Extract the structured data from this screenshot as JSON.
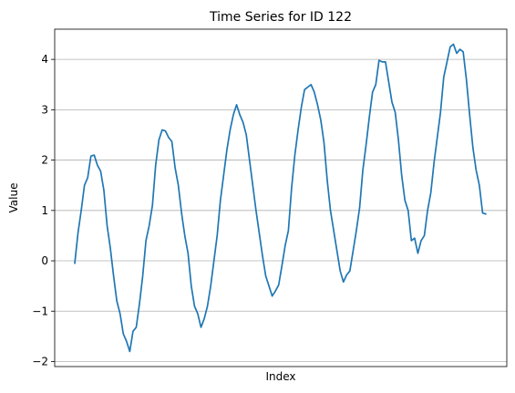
{
  "chart_data": {
    "type": "line",
    "title": "Time Series for ID 122",
    "xlabel": "Index",
    "ylabel": "Value",
    "ylim": [
      -2.1,
      4.6
    ],
    "yticks": [
      -2,
      -1,
      0,
      1,
      2,
      3,
      4
    ],
    "ytick_labels": [
      "−2",
      "−1",
      "0",
      "1",
      "2",
      "3",
      "4"
    ],
    "grid": "y",
    "line_color": "#1f77b4",
    "series": [
      {
        "values": [
          -0.05,
          0.55,
          1.0,
          1.5,
          1.65,
          2.08,
          2.1,
          1.9,
          1.78,
          1.4,
          0.7,
          0.25,
          -0.3,
          -0.8,
          -1.05,
          -1.45,
          -1.6,
          -1.8,
          -1.4,
          -1.32,
          -0.85,
          -0.3,
          0.4,
          0.7,
          1.1,
          1.9,
          2.4,
          2.6,
          2.58,
          2.45,
          2.37,
          1.85,
          1.5,
          0.95,
          0.5,
          0.15,
          -0.5,
          -0.9,
          -1.05,
          -1.32,
          -1.15,
          -0.9,
          -0.5,
          0.0,
          0.5,
          1.2,
          1.7,
          2.2,
          2.6,
          2.9,
          3.1,
          2.9,
          2.75,
          2.5,
          2.0,
          1.5,
          1.0,
          0.55,
          0.1,
          -0.3,
          -0.5,
          -0.7,
          -0.6,
          -0.48,
          -0.1,
          0.3,
          0.6,
          1.45,
          2.1,
          2.6,
          3.05,
          3.4,
          3.45,
          3.5,
          3.35,
          3.1,
          2.8,
          2.35,
          1.6,
          1.0,
          0.6,
          0.2,
          -0.2,
          -0.42,
          -0.28,
          -0.2,
          0.2,
          0.6,
          1.05,
          1.8,
          2.3,
          2.85,
          3.35,
          3.5,
          3.98,
          3.95,
          3.95,
          3.55,
          3.15,
          2.95,
          2.4,
          1.7,
          1.2,
          1.0,
          0.4,
          0.45,
          0.15,
          0.4,
          0.5,
          1.0,
          1.35,
          1.95,
          2.45,
          2.95,
          3.65,
          3.95,
          4.25,
          4.3,
          4.12,
          4.2,
          4.15,
          3.6,
          2.9,
          2.25,
          1.8,
          1.5,
          0.95,
          0.93
        ]
      }
    ]
  }
}
